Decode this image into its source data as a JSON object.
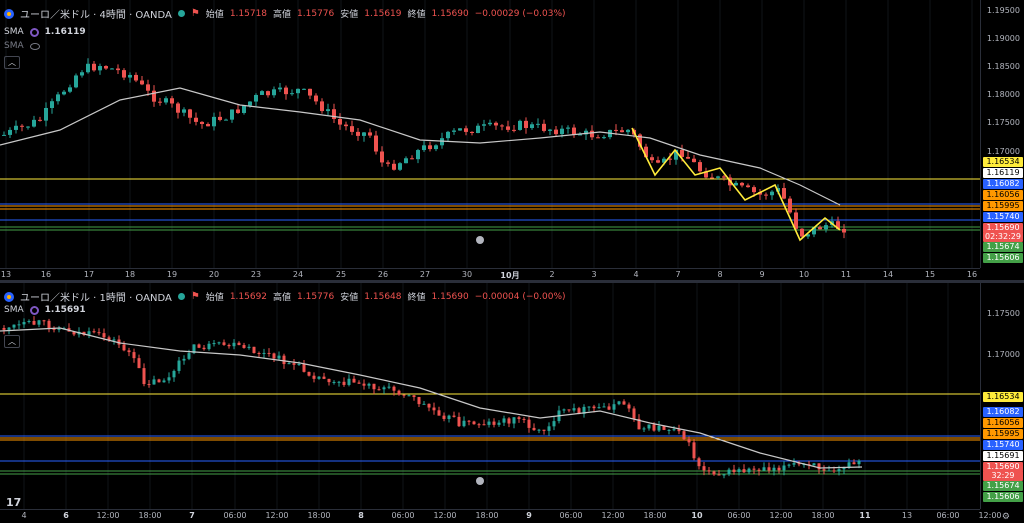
{
  "colors": {
    "up": "#26a69a",
    "down": "#ef5350",
    "sma": "#c8c8c8",
    "yellow": "#ffeb3b",
    "blue": "#2962ff",
    "orange": "#ff9800",
    "green_tag": "#43a047",
    "grid": "#2a2e39"
  },
  "top": {
    "title": "ユーロ／米ドル · 4時間 · OANDA",
    "ohlc": {
      "o_label": "始値",
      "o": "1.15718",
      "h_label": "高値",
      "h": "1.15776",
      "l_label": "安値",
      "l": "1.15619",
      "c_label": "終値",
      "c": "1.15690",
      "chg": "−0.00029 (−0.03%)"
    },
    "sma_label": "SMA",
    "sma_value": "1.16119",
    "sma2_label": "SMA",
    "yticks": [
      "1.19500",
      "1.19000",
      "1.18500",
      "1.18000",
      "1.17500",
      "1.17000"
    ],
    "tags": [
      {
        "text": "1.16534",
        "bg": "#ffeb3b",
        "fg": "#000"
      },
      {
        "text": "1.16119",
        "bg": "#ffffff",
        "fg": "#000"
      },
      {
        "text": "1.16082",
        "bg": "#2962ff",
        "fg": "#fff"
      },
      {
        "text": "1.16056",
        "bg": "#ff9800",
        "fg": "#000"
      },
      {
        "text": "1.15995",
        "bg": "#ff9800",
        "fg": "#000"
      },
      {
        "text": "1.15740",
        "bg": "#2962ff",
        "fg": "#fff"
      },
      {
        "text": "1.15690",
        "bg": "#ef5350",
        "fg": "#fff"
      },
      {
        "text": "02:32:29",
        "bg": "#ef5350",
        "fg": "#fff"
      },
      {
        "text": "1.15674",
        "bg": "#43a047",
        "fg": "#fff"
      },
      {
        "text": "1.15606",
        "bg": "#43a047",
        "fg": "#fff"
      }
    ],
    "xticks": [
      "13",
      "16",
      "17",
      "18",
      "19",
      "20",
      "23",
      "24",
      "25",
      "26",
      "27",
      "30",
      "10月",
      "2",
      "3",
      "4",
      "7",
      "8",
      "9",
      "10",
      "11",
      "14",
      "15",
      "16"
    ]
  },
  "bottom": {
    "title": "ユーロ／米ドル · 1時間 · OANDA",
    "ohlc": {
      "o_label": "始値",
      "o": "1.15692",
      "h_label": "高値",
      "h": "1.15776",
      "l_label": "安値",
      "l": "1.15648",
      "c_label": "終値",
      "c": "1.15690",
      "chg": "−0.00004 (−0.00%)"
    },
    "sma_label": "SMA",
    "sma_value": "1.15691",
    "yticks": [
      "1.17500",
      "1.17000"
    ],
    "tags": [
      {
        "text": "1.16534",
        "bg": "#ffeb3b",
        "fg": "#000"
      },
      {
        "text": "1.16082",
        "bg": "#2962ff",
        "fg": "#fff"
      },
      {
        "text": "1.16056",
        "bg": "#ff9800",
        "fg": "#000"
      },
      {
        "text": "1.15995",
        "bg": "#ff9800",
        "fg": "#000"
      },
      {
        "text": "1.15740",
        "bg": "#2962ff",
        "fg": "#fff"
      },
      {
        "text": "1.15691",
        "bg": "#ffffff",
        "fg": "#000"
      },
      {
        "text": "1.15690",
        "bg": "#ef5350",
        "fg": "#fff"
      },
      {
        "text": "32:29",
        "bg": "#ef5350",
        "fg": "#fff"
      },
      {
        "text": "1.15674",
        "bg": "#43a047",
        "fg": "#fff"
      },
      {
        "text": "1.15606",
        "bg": "#43a047",
        "fg": "#fff"
      }
    ],
    "xticks": [
      "4",
      "6",
      "12:00",
      "18:00",
      "7",
      "06:00",
      "12:00",
      "18:00",
      "8",
      "06:00",
      "12:00",
      "18:00",
      "9",
      "06:00",
      "12:00",
      "18:00",
      "10",
      "06:00",
      "12:00",
      "18:00",
      "11",
      "13",
      "06:00",
      "12:00"
    ]
  }
}
